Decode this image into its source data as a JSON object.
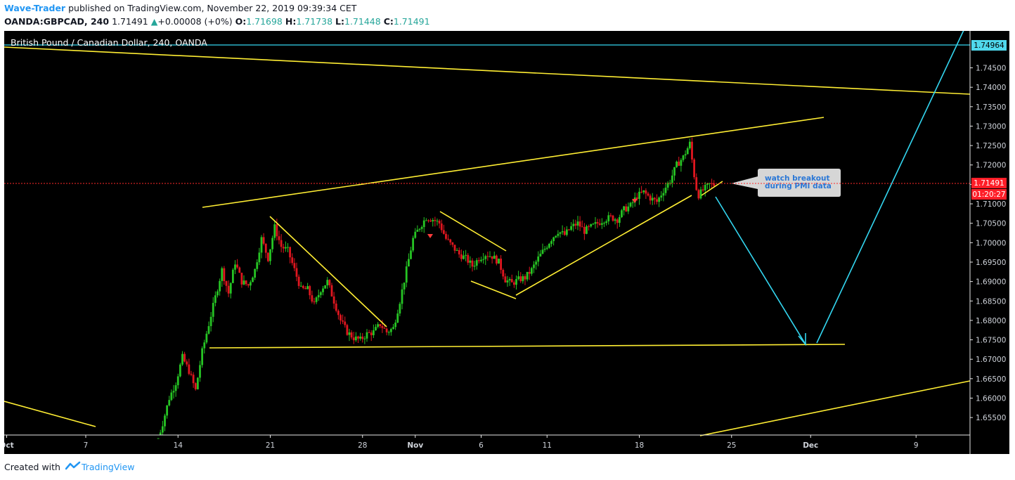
{
  "header": {
    "author": "Wave-Trader",
    "published_text": "published on TradingView.com, November 22, 2019 09:39:34 CET",
    "symbol": "OANDA:GBPCAD, 240",
    "last_price": "1.71491",
    "change_arrow": "▲",
    "change": "+0.00008 (+0%)",
    "o_label": "O:",
    "o_value": "1.71698",
    "h_label": "H:",
    "h_value": "1.71738",
    "l_label": "L:",
    "l_value": "1.71448",
    "c_label": "C:",
    "c_value": "1.71491"
  },
  "footer": {
    "created_with": "Created with",
    "brand": "TradingView"
  },
  "colors": {
    "background": "#000000",
    "up_candle": "#26c424",
    "down_candle": "#e0161f",
    "trendline": "#ffee33",
    "projection": "#33d6f0",
    "price_tag_bg": "#ff1e28",
    "crosshair_tag_bg": "#50d8ec",
    "axis_text": "#cfd3da",
    "brand_blue": "#2196f3"
  },
  "chart_data": {
    "type": "candlestick",
    "title": "British Pound / Canadian Dollar, 240, OANDA",
    "ylim": [
      1.6505,
      1.7545
    ],
    "y_ticks": [
      "1.65500",
      "1.66000",
      "1.66500",
      "1.67000",
      "1.67500",
      "1.68000",
      "1.68500",
      "1.69000",
      "1.69500",
      "1.70000",
      "1.70500",
      "1.71000",
      "1.71500",
      "1.72000",
      "1.72500",
      "1.73000",
      "1.73500",
      "1.74000",
      "1.74500"
    ],
    "x_ticks": [
      {
        "label": "Oct",
        "day": 0,
        "bold": true
      },
      {
        "label": "7",
        "day": 6
      },
      {
        "label": "14",
        "day": 13
      },
      {
        "label": "21",
        "day": 20
      },
      {
        "label": "28",
        "day": 27
      },
      {
        "label": "Nov",
        "day": 31,
        "bold": true
      },
      {
        "label": "6",
        "day": 36
      },
      {
        "label": "11",
        "day": 41
      },
      {
        "label": "18",
        "day": 48
      },
      {
        "label": "25",
        "day": 55
      },
      {
        "label": "Dec",
        "day": 61,
        "bold": true
      },
      {
        "label": "9",
        "day": 69
      }
    ],
    "price_marker": {
      "value": 1.71491,
      "label": "1.71491",
      "countdown": "01:20:27"
    },
    "horizontal_marker": {
      "value": 1.74964,
      "label": "1.74964"
    },
    "annotation": {
      "lines": [
        "watch breakout",
        "during PMI data"
      ],
      "day": 59.1,
      "price": 1.7155
    },
    "series": [
      {
        "name": "",
        "anchors": [
          [
            11.5,
            1.6478
          ],
          [
            12.0,
            1.6535
          ],
          [
            12.5,
            1.66
          ],
          [
            13.0,
            1.664
          ],
          [
            13.5,
            1.6705
          ],
          [
            14.0,
            1.667
          ],
          [
            14.5,
            1.662
          ],
          [
            15.0,
            1.672
          ],
          [
            15.5,
            1.679
          ],
          [
            16.0,
            1.686
          ],
          [
            16.5,
            1.693
          ],
          [
            17.0,
            1.687
          ],
          [
            17.5,
            1.695
          ],
          [
            18.0,
            1.69
          ],
          [
            18.5,
            1.689
          ],
          [
            19.0,
            1.693
          ],
          [
            19.5,
            1.701
          ],
          [
            20.0,
            1.696
          ],
          [
            20.5,
            1.704
          ],
          [
            21.0,
            1.699
          ],
          [
            21.5,
            1.698
          ],
          [
            22.0,
            1.693
          ],
          [
            22.5,
            1.688
          ],
          [
            23.0,
            1.688
          ],
          [
            23.5,
            1.684
          ],
          [
            24.0,
            1.688
          ],
          [
            24.5,
            1.69
          ],
          [
            25.0,
            1.685
          ],
          [
            25.5,
            1.68
          ],
          [
            26.0,
            1.677
          ],
          [
            26.5,
            1.6755
          ],
          [
            27.0,
            1.675
          ],
          [
            27.5,
            1.6765
          ],
          [
            28.0,
            1.677
          ],
          [
            28.5,
            1.679
          ],
          [
            29.0,
            1.677
          ],
          [
            29.5,
            1.678
          ],
          [
            30.0,
            1.685
          ],
          [
            30.5,
            1.693
          ],
          [
            31.0,
            1.701
          ],
          [
            31.5,
            1.704
          ],
          [
            32.0,
            1.7065
          ],
          [
            32.5,
            1.706
          ],
          [
            33.0,
            1.705
          ],
          [
            33.5,
            1.701
          ],
          [
            34.0,
            1.699
          ],
          [
            34.5,
            1.697
          ],
          [
            35.0,
            1.696
          ],
          [
            35.5,
            1.694
          ],
          [
            36.0,
            1.696
          ],
          [
            36.5,
            1.697
          ],
          [
            37.0,
            1.6965
          ],
          [
            37.5,
            1.695
          ],
          [
            38.0,
            1.6905
          ],
          [
            38.5,
            1.6895
          ],
          [
            39.0,
            1.6905
          ],
          [
            39.5,
            1.691
          ],
          [
            40.0,
            1.693
          ],
          [
            40.5,
            1.696
          ],
          [
            41.0,
            1.6985
          ],
          [
            41.5,
            1.701
          ],
          [
            42.0,
            1.703
          ],
          [
            42.5,
            1.702
          ],
          [
            43.0,
            1.704
          ],
          [
            43.5,
            1.705
          ],
          [
            44.0,
            1.703
          ],
          [
            44.5,
            1.704
          ],
          [
            45.0,
            1.705
          ],
          [
            45.5,
            1.706
          ],
          [
            46.0,
            1.7065
          ],
          [
            46.5,
            1.706
          ],
          [
            47.0,
            1.7085
          ],
          [
            47.5,
            1.7095
          ],
          [
            48.0,
            1.712
          ],
          [
            48.5,
            1.713
          ],
          [
            49.0,
            1.7115
          ],
          [
            49.5,
            1.7105
          ],
          [
            50.0,
            1.7135
          ],
          [
            50.5,
            1.716
          ],
          [
            51.0,
            1.72
          ],
          [
            51.5,
            1.722
          ],
          [
            52.0,
            1.7255
          ],
          [
            52.3,
            1.718
          ],
          [
            52.6,
            1.712
          ],
          [
            53.0,
            1.7135
          ],
          [
            53.5,
            1.715
          ],
          [
            53.8,
            1.7149
          ]
        ]
      }
    ]
  }
}
